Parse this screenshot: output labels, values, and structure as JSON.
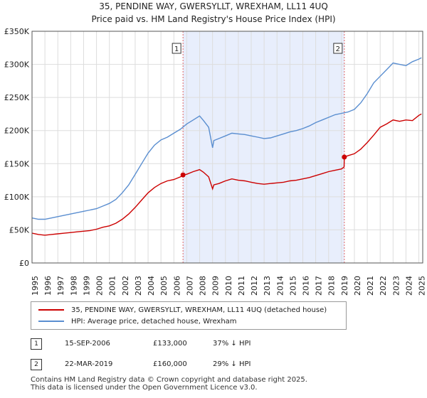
{
  "title_line1": "35, PENDINE WAY, GWERSYLLT, WREXHAM, LL11 4UQ",
  "title_line2": "Price paid vs. HM Land Registry's House Price Index (HPI)",
  "colors": {
    "property": "#cc0000",
    "hpi": "#5a8ed0",
    "shade": "#e8eefc",
    "marker_line": "#e06666",
    "grid": "#dddddd"
  },
  "chart_data": {
    "type": "line",
    "title": "Price paid vs. HM Land Registry's House Price Index (HPI)",
    "xlabel": "",
    "ylabel": "",
    "xlim": [
      1995,
      2025.3
    ],
    "ylim": [
      0,
      350000
    ],
    "x_ticks": [
      "1995",
      "1996",
      "1997",
      "1998",
      "1999",
      "2000",
      "2001",
      "2002",
      "2003",
      "2004",
      "2005",
      "2006",
      "2007",
      "2008",
      "2009",
      "2010",
      "2011",
      "2012",
      "2013",
      "2014",
      "2015",
      "2016",
      "2017",
      "2018",
      "2019",
      "2020",
      "2021",
      "2022",
      "2023",
      "2024",
      "2025"
    ],
    "y_ticks": [
      {
        "value": 0,
        "label": "£0"
      },
      {
        "value": 50000,
        "label": "£50K"
      },
      {
        "value": 100000,
        "label": "£100K"
      },
      {
        "value": 150000,
        "label": "£150K"
      },
      {
        "value": 200000,
        "label": "£200K"
      },
      {
        "value": 250000,
        "label": "£250K"
      },
      {
        "value": 300000,
        "label": "£300K"
      },
      {
        "value": 350000,
        "label": "£350K"
      }
    ],
    "shaded_range": [
      2006.71,
      2019.22
    ],
    "series": [
      {
        "name": "35, PENDINE WAY, GWERSYLLT, WREXHAM, LL11 4UQ (detached house)",
        "color": "#cc0000",
        "x": [
          1995.0,
          1995.5,
          1996.0,
          1996.5,
          1997.0,
          1997.5,
          1998.0,
          1998.5,
          1999.0,
          1999.5,
          2000.0,
          2000.5,
          2001.0,
          2001.5,
          2002.0,
          2002.5,
          2003.0,
          2003.5,
          2004.0,
          2004.5,
          2005.0,
          2005.5,
          2006.0,
          2006.5,
          2006.71,
          2007.0,
          2007.5,
          2008.0,
          2008.3,
          2008.7,
          2009.0,
          2009.1,
          2009.5,
          2010.0,
          2010.5,
          2011.0,
          2011.5,
          2012.0,
          2012.5,
          2013.0,
          2013.5,
          2014.0,
          2014.5,
          2015.0,
          2015.5,
          2016.0,
          2016.5,
          2017.0,
          2017.5,
          2018.0,
          2018.5,
          2019.0,
          2019.2,
          2019.22,
          2019.5,
          2020.0,
          2020.5,
          2021.0,
          2021.5,
          2022.0,
          2022.5,
          2023.0,
          2023.5,
          2024.0,
          2024.5,
          2025.0,
          2025.2
        ],
        "y": [
          45000,
          43000,
          42000,
          43000,
          44000,
          45000,
          46000,
          47000,
          48000,
          49000,
          51000,
          54000,
          56000,
          60000,
          66000,
          74000,
          84000,
          95000,
          106000,
          114000,
          120000,
          124000,
          126000,
          130000,
          133000,
          134000,
          138000,
          141000,
          137000,
          130000,
          112000,
          118000,
          120000,
          124000,
          127000,
          125000,
          124000,
          122000,
          120000,
          119000,
          120000,
          121000,
          122000,
          124000,
          125000,
          127000,
          129000,
          132000,
          135000,
          138000,
          140000,
          142000,
          145000,
          160000,
          162000,
          165000,
          172000,
          182000,
          193000,
          205000,
          210000,
          216000,
          214000,
          216000,
          215000,
          223000,
          225000
        ]
      },
      {
        "name": "HPI: Average price, detached house, Wrexham",
        "color": "#5a8ed0",
        "x": [
          1995.0,
          1995.5,
          1996.0,
          1996.5,
          1997.0,
          1997.5,
          1998.0,
          1998.5,
          1999.0,
          1999.5,
          2000.0,
          2000.5,
          2001.0,
          2001.5,
          2002.0,
          2002.5,
          2003.0,
          2003.5,
          2004.0,
          2004.5,
          2005.0,
          2005.5,
          2006.0,
          2006.5,
          2007.0,
          2007.5,
          2008.0,
          2008.3,
          2008.7,
          2009.0,
          2009.1,
          2009.5,
          2010.0,
          2010.5,
          2011.0,
          2011.5,
          2012.0,
          2012.5,
          2013.0,
          2013.5,
          2014.0,
          2014.5,
          2015.0,
          2015.5,
          2016.0,
          2016.5,
          2017.0,
          2017.5,
          2018.0,
          2018.5,
          2019.0,
          2019.5,
          2020.0,
          2020.5,
          2021.0,
          2021.5,
          2022.0,
          2022.5,
          2023.0,
          2023.5,
          2024.0,
          2024.5,
          2025.0,
          2025.2
        ],
        "y": [
          68000,
          66000,
          66000,
          68000,
          70000,
          72000,
          74000,
          76000,
          78000,
          80000,
          82000,
          86000,
          90000,
          96000,
          106000,
          118000,
          134000,
          150000,
          166000,
          178000,
          186000,
          190000,
          196000,
          202000,
          210000,
          216000,
          222000,
          215000,
          205000,
          174000,
          185000,
          188000,
          192000,
          196000,
          195000,
          194000,
          192000,
          190000,
          188000,
          189000,
          192000,
          195000,
          198000,
          200000,
          203000,
          207000,
          212000,
          216000,
          220000,
          224000,
          226000,
          228000,
          232000,
          242000,
          256000,
          272000,
          282000,
          292000,
          302000,
          300000,
          298000,
          304000,
          308000,
          310000
        ]
      }
    ],
    "annotations": [
      {
        "label": "1",
        "x": 2006.71,
        "y": 133000
      },
      {
        "label": "2",
        "x": 2019.22,
        "y": 160000
      }
    ]
  },
  "legend": {
    "property_label": "35, PENDINE WAY, GWERSYLLT, WREXHAM, LL11 4UQ (detached house)",
    "hpi_label": "HPI: Average price, detached house, Wrexham"
  },
  "transactions": [
    {
      "num": "1",
      "date": "15-SEP-2006",
      "price": "£133,000",
      "hpi": "37% ↓ HPI"
    },
    {
      "num": "2",
      "date": "22-MAR-2019",
      "price": "£160,000",
      "hpi": "29% ↓ HPI"
    }
  ],
  "footer": {
    "line1": "Contains HM Land Registry data © Crown copyright and database right 2025.",
    "line2": "This data is licensed under the Open Government Licence v3.0."
  }
}
